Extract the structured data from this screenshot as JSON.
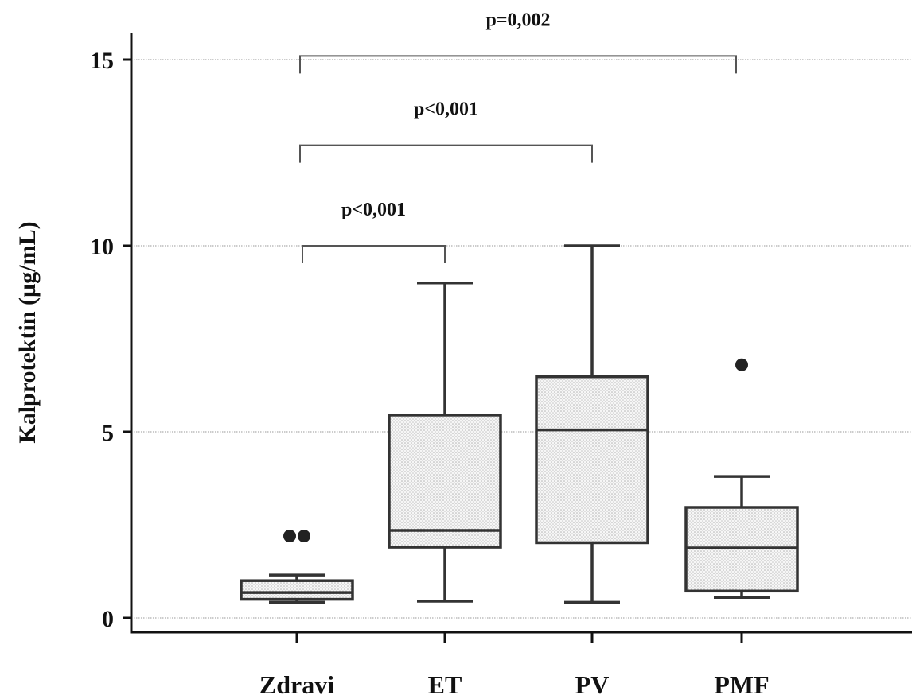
{
  "chart_data": {
    "type": "box",
    "title": "",
    "xlabel": "",
    "ylabel": "Kalprotektin (µg/mL)",
    "ylim": [
      0,
      15.5
    ],
    "yticks": [
      0,
      5,
      10,
      15
    ],
    "y_tick_labels": [
      "0",
      "5",
      "10",
      "15"
    ],
    "grid": "horizontal dotted",
    "categories": [
      "Zdravi",
      "ET",
      "PV",
      "PMF"
    ],
    "boxes": [
      {
        "category": "Zdravi",
        "min": 0.42,
        "q1": 0.5,
        "median": 0.68,
        "q3": 1.0,
        "max": 1.15,
        "outliers": [
          2.2,
          2.2
        ]
      },
      {
        "category": "ET",
        "min": 0.45,
        "q1": 1.9,
        "median": 2.35,
        "q3": 5.45,
        "max": 9.0,
        "outliers": []
      },
      {
        "category": "PV",
        "min": 0.42,
        "q1": 2.02,
        "median": 5.05,
        "q3": 6.48,
        "max": 10.0,
        "outliers": []
      },
      {
        "category": "PMF",
        "min": 0.55,
        "q1": 0.72,
        "median": 1.88,
        "q3": 2.97,
        "max": 3.8,
        "outliers": [
          6.8
        ]
      }
    ],
    "significance": [
      {
        "from": "Zdravi",
        "to": "ET",
        "label": "p<0,001",
        "y": 10.0
      },
      {
        "from": "Zdravi",
        "to": "PV",
        "label": "p<0,001",
        "y": 12.7
      },
      {
        "from": "Zdravi",
        "to": "PMF",
        "label": "p=0,002",
        "y": 15.1
      }
    ],
    "colors": {
      "axis": "#111111",
      "box_stroke": "#333333",
      "box_fill": "#e8e8e8",
      "grid": "#9a9a9a",
      "bracket": "#555555",
      "outlier": "#222222"
    }
  }
}
